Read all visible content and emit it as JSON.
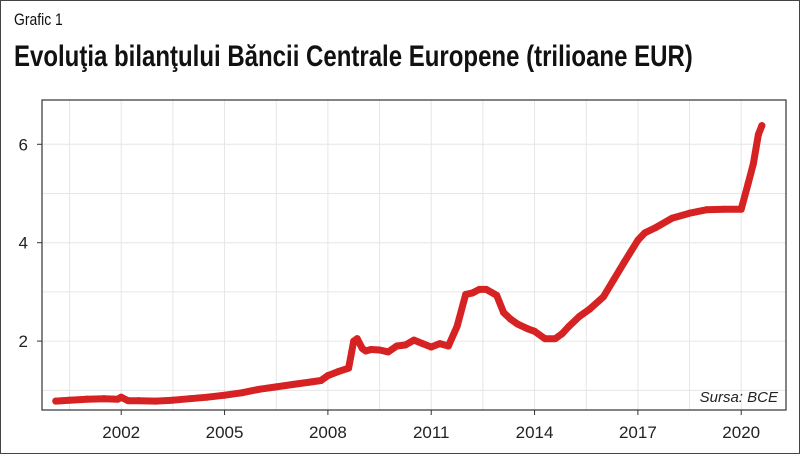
{
  "header": {
    "figure_label": "Grafic 1",
    "title": "Evoluţia bilanţului Băncii Centrale Europene (trilioane EUR)"
  },
  "chart_data": {
    "type": "line",
    "title": "Evoluţia bilanţului Băncii Centrale Europene (trilioane EUR)",
    "xlabel": "",
    "ylabel": "",
    "xlim": [
      1999.7,
      2021.3
    ],
    "ylim": [
      0.6,
      6.9
    ],
    "x_ticks": [
      2002,
      2005,
      2008,
      2011,
      2014,
      2017,
      2020
    ],
    "y_ticks": [
      2,
      4,
      6
    ],
    "grid": true,
    "legend": "none",
    "source_note": "Sursa: BCE",
    "series": [
      {
        "color": "#d62222",
        "x": [
          2000.1,
          2000.5,
          2001.0,
          2001.5,
          2001.9,
          2002.0,
          2002.2,
          2002.5,
          2003.0,
          2003.5,
          2004.0,
          2004.5,
          2005.0,
          2005.5,
          2006.0,
          2006.5,
          2007.0,
          2007.5,
          2007.8,
          2008.0,
          2008.3,
          2008.6,
          2008.75,
          2008.85,
          2009.0,
          2009.1,
          2009.25,
          2009.5,
          2009.75,
          2010.0,
          2010.25,
          2010.5,
          2010.75,
          2011.0,
          2011.25,
          2011.5,
          2011.75,
          2012.0,
          2012.2,
          2012.4,
          2012.6,
          2012.9,
          2013.1,
          2013.3,
          2013.5,
          2013.8,
          2014.0,
          2014.3,
          2014.6,
          2014.8,
          2015.0,
          2015.3,
          2015.6,
          2016.0,
          2016.3,
          2016.6,
          2017.0,
          2017.2,
          2017.5,
          2018.0,
          2018.5,
          2019.0,
          2019.5,
          2020.0,
          2020.2,
          2020.35,
          2020.5,
          2020.6
        ],
        "y": [
          0.78,
          0.8,
          0.82,
          0.83,
          0.82,
          0.86,
          0.79,
          0.79,
          0.78,
          0.8,
          0.83,
          0.86,
          0.9,
          0.95,
          1.02,
          1.07,
          1.12,
          1.17,
          1.2,
          1.3,
          1.38,
          1.45,
          2.0,
          2.05,
          1.85,
          1.8,
          1.83,
          1.82,
          1.78,
          1.9,
          1.92,
          2.02,
          1.95,
          1.88,
          1.95,
          1.9,
          2.3,
          2.95,
          2.98,
          3.05,
          3.05,
          2.93,
          2.58,
          2.45,
          2.35,
          2.25,
          2.2,
          2.05,
          2.05,
          2.15,
          2.3,
          2.5,
          2.65,
          2.9,
          3.25,
          3.6,
          4.05,
          4.2,
          4.3,
          4.5,
          4.6,
          4.67,
          4.68,
          4.68,
          5.2,
          5.6,
          6.2,
          6.38
        ]
      }
    ]
  }
}
